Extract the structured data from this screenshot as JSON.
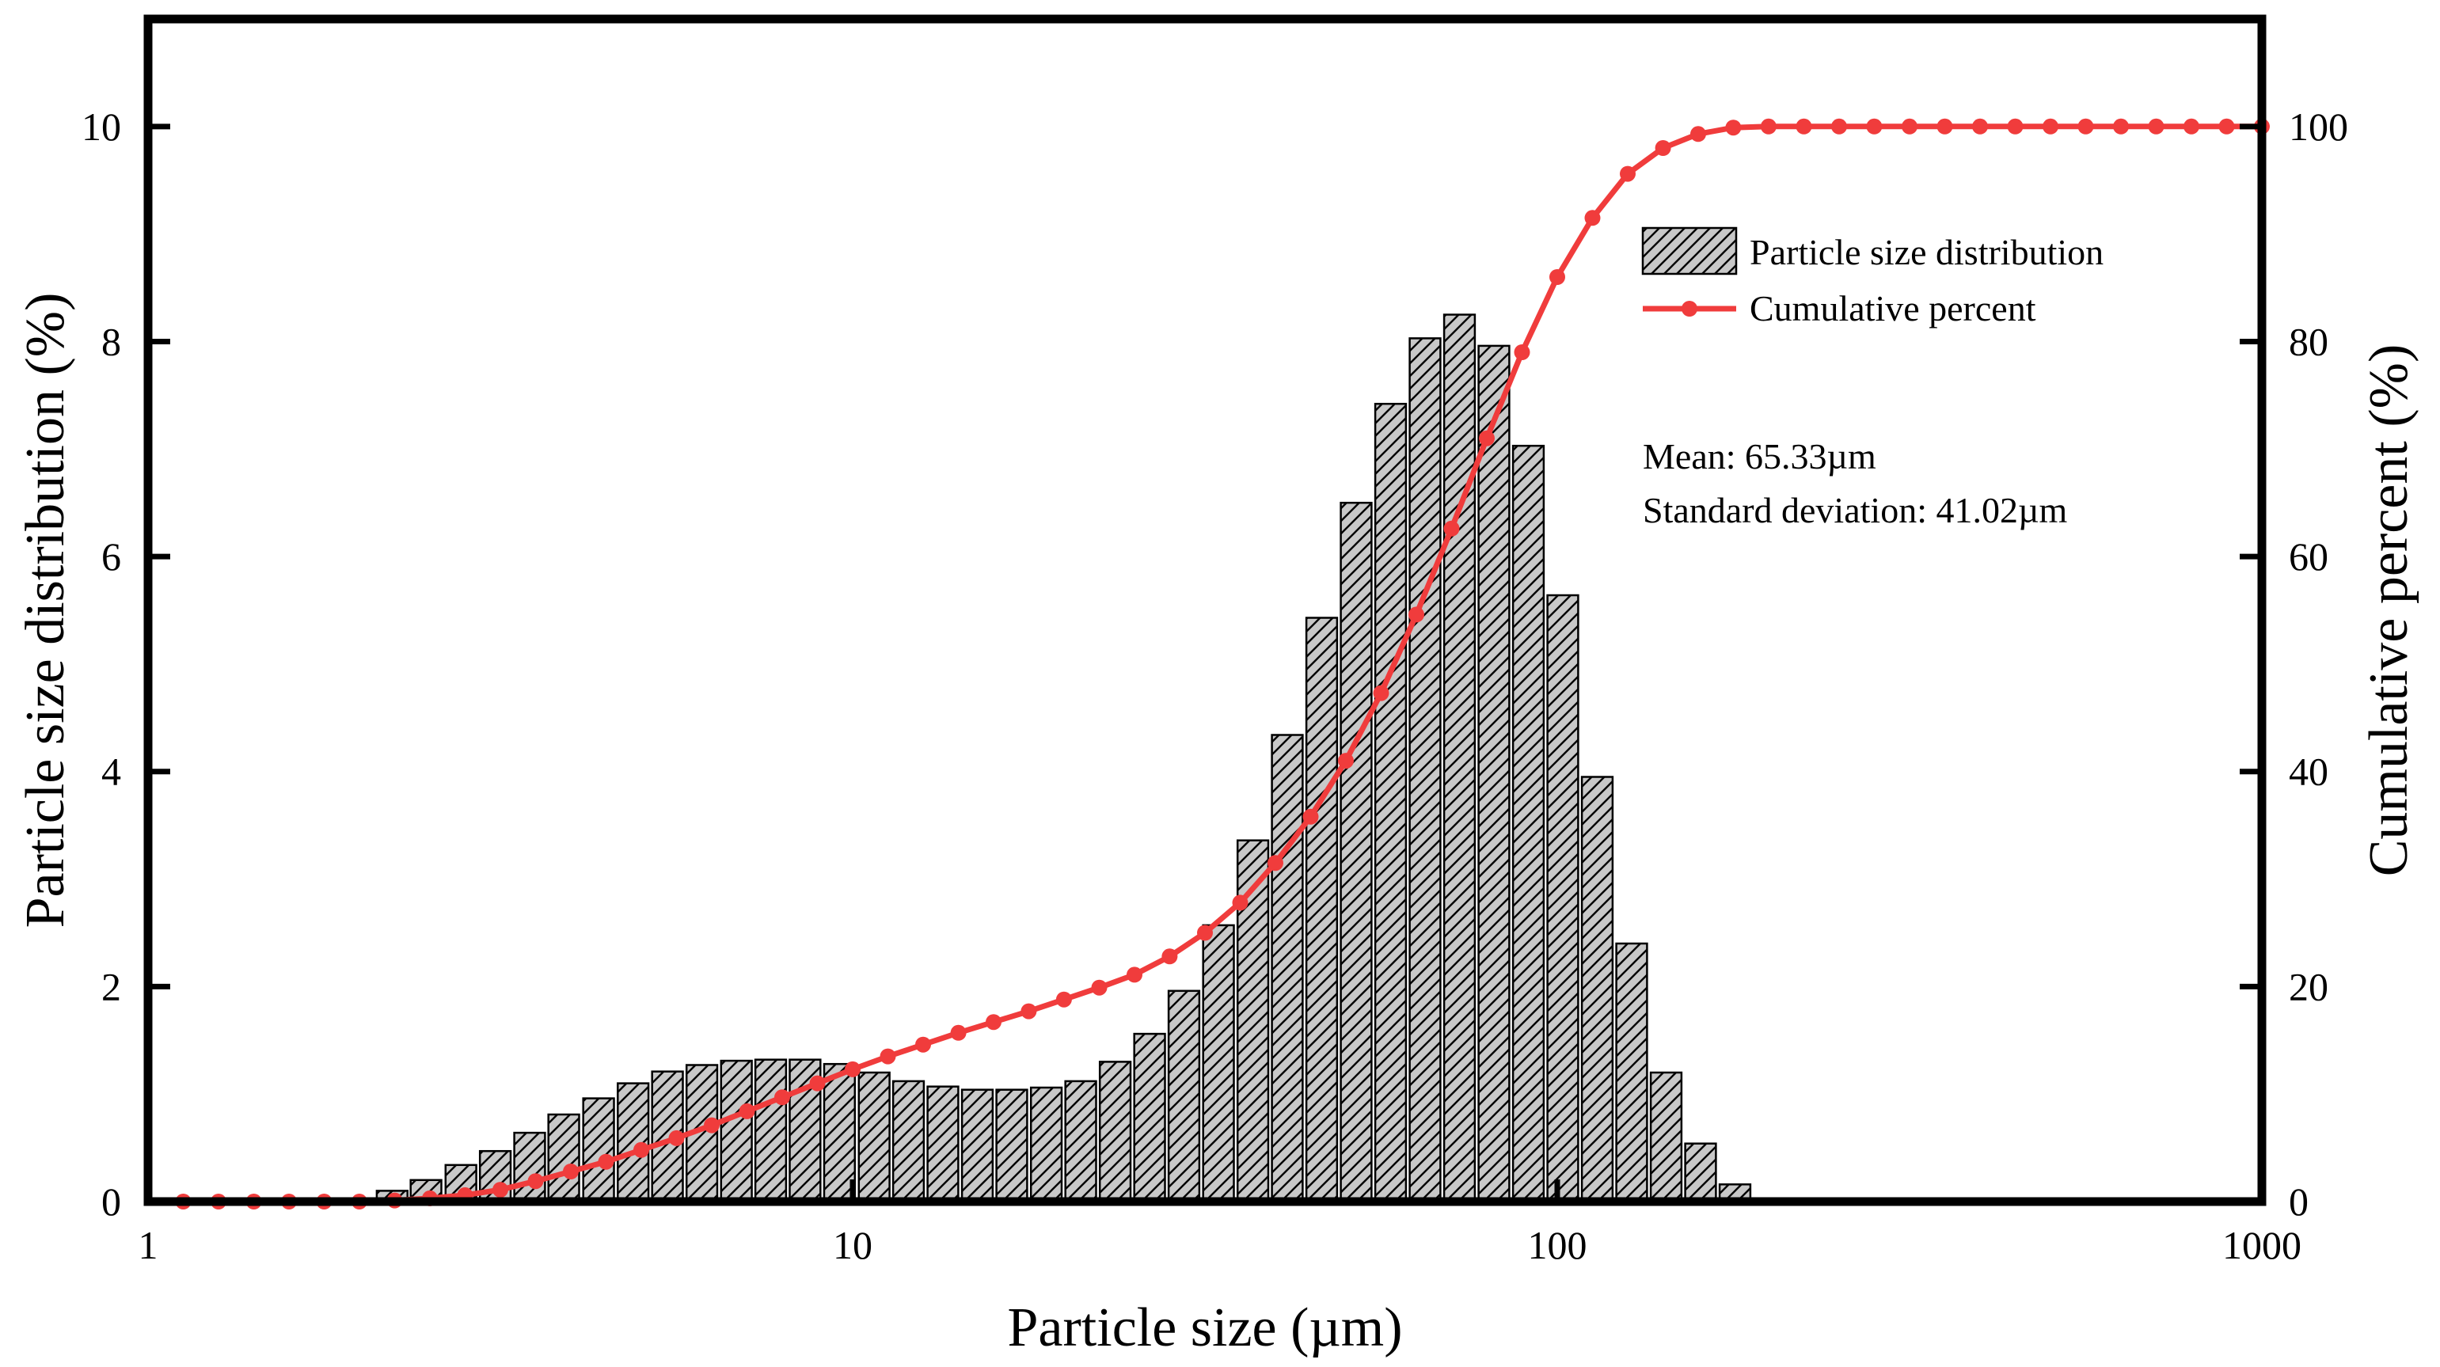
{
  "chart_data": {
    "type": "bar",
    "title": "",
    "xlabel": "Particle size (µm)",
    "ylabel": "Particle size distribution (%)",
    "y2label": "Cumulative percent (%)",
    "xscale": "log",
    "xlim": [
      1,
      1000
    ],
    "ylim": [
      0,
      11
    ],
    "y2lim": [
      0,
      110
    ],
    "xticks": [
      1,
      10,
      100,
      1000
    ],
    "xtick_labels": [
      "1",
      "10",
      "100",
      "1000"
    ],
    "yticks": [
      0,
      2,
      4,
      6,
      8,
      10
    ],
    "ytick_labels": [
      "0",
      "2",
      "4",
      "6",
      "8",
      "10"
    ],
    "y2ticks": [
      0,
      20,
      40,
      60,
      80,
      100
    ],
    "y2tick_labels": [
      "0",
      "20",
      "40",
      "60",
      "80",
      "100"
    ],
    "legend": {
      "position": "top-right",
      "entries": [
        "Particle size distribution",
        "Cumulative percent"
      ]
    },
    "annotations": [
      "Mean: 65.33µm",
      "Standard deviation: 41.02µm"
    ],
    "colors": {
      "bar_fill": "#c8c8c8",
      "bar_hatch": "#000000",
      "line": "#f03c3c"
    },
    "series": [
      {
        "name": "Particle size distribution",
        "type": "bar",
        "x": [
          2.22,
          2.48,
          2.78,
          3.11,
          3.48,
          3.89,
          4.36,
          4.88,
          5.46,
          6.11,
          6.84,
          7.65,
          8.56,
          9.58,
          10.73,
          12.0,
          13.43,
          15.03,
          16.82,
          18.83,
          21.07,
          23.58,
          26.39,
          29.53,
          33.05,
          36.99,
          41.39,
          46.32,
          51.84,
          58.01,
          64.92,
          72.66,
          81.31,
          91.0,
          101.83,
          113.96,
          127.54,
          142.73,
          159.73,
          178.76,
          200.05
        ],
        "values": [
          0.1,
          0.2,
          0.34,
          0.47,
          0.64,
          0.81,
          0.96,
          1.1,
          1.21,
          1.27,
          1.31,
          1.32,
          1.32,
          1.28,
          1.2,
          1.12,
          1.07,
          1.04,
          1.04,
          1.06,
          1.12,
          1.3,
          1.56,
          1.96,
          2.57,
          3.36,
          4.34,
          5.43,
          6.5,
          7.42,
          8.03,
          8.25,
          7.96,
          7.03,
          5.64,
          3.95,
          2.4,
          1.2,
          0.54,
          0.16,
          0.0
        ]
      },
      {
        "name": "Cumulative percent",
        "type": "line",
        "x": [
          1.122,
          1.259,
          1.413,
          1.585,
          1.778,
          1.995,
          2.239,
          2.512,
          2.818,
          3.162,
          3.548,
          3.981,
          4.467,
          5.012,
          5.623,
          6.31,
          7.079,
          7.943,
          8.913,
          10.0,
          11.22,
          12.59,
          14.13,
          15.85,
          17.78,
          19.95,
          22.39,
          25.12,
          28.18,
          31.62,
          35.48,
          39.81,
          44.67,
          50.12,
          56.23,
          63.1,
          70.79,
          79.43,
          89.13,
          100.0,
          112.2,
          125.9,
          141.3,
          158.5,
          177.8,
          199.5,
          223.9,
          251.2,
          281.8,
          316.2,
          354.8,
          398.1,
          446.7,
          501.2,
          562.3,
          631.0,
          707.9,
          794.3,
          891.3,
          1000.0
        ],
        "values": [
          0,
          0,
          0,
          0,
          0,
          0,
          0.1,
          0.3,
          0.6,
          1.1,
          1.9,
          2.8,
          3.7,
          4.8,
          5.9,
          7.1,
          8.4,
          9.7,
          11.0,
          12.3,
          13.5,
          14.6,
          15.7,
          16.7,
          17.7,
          18.8,
          19.9,
          21.1,
          22.8,
          25.0,
          27.8,
          31.5,
          35.8,
          41.0,
          47.3,
          54.6,
          62.6,
          71.0,
          79.0,
          86.0,
          91.5,
          95.6,
          98.0,
          99.3,
          99.9,
          100,
          100,
          100,
          100,
          100,
          100,
          100,
          100,
          100,
          100,
          100,
          100,
          100,
          100,
          100
        ]
      }
    ]
  }
}
